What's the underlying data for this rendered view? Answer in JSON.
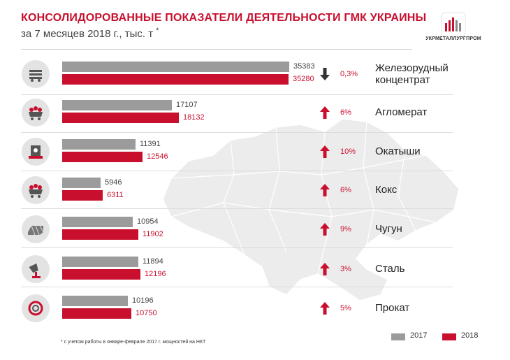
{
  "header": {
    "title": "КОНСОЛИДОРОВАННЫЕ ПОКАЗАТЕЛИ ДЕЯТЕЛЬНОСТИ ГМК УКРАИНЫ",
    "subtitle": "за 7 месяцев 2018 г., тыс. т",
    "subtitle_mark": "*",
    "logo_text": "УКРМЕТАЛЛУРГПРОМ"
  },
  "colors": {
    "brand_red": "#c8102e",
    "series_2017": "#9b9b9b",
    "series_2018": "#c8102e",
    "map": "#ececec"
  },
  "chart_data": {
    "type": "bar",
    "orientation": "horizontal",
    "categories": [
      "Железорудный концентрат",
      "Агломерат",
      "Окатыши",
      "Кокс",
      "Чугун",
      "Сталь",
      "Прокат"
    ],
    "series": [
      {
        "name": "2017",
        "values": [
          35383,
          17107,
          11391,
          5946,
          10954,
          11894,
          10196
        ]
      },
      {
        "name": "2018",
        "values": [
          35280,
          18132,
          12546,
          6311,
          11902,
          12196,
          10750
        ]
      }
    ],
    "change": [
      {
        "direction": "down",
        "text": "0,3%"
      },
      {
        "direction": "up",
        "text": "6%"
      },
      {
        "direction": "up",
        "text": "10%"
      },
      {
        "direction": "up",
        "text": "6%"
      },
      {
        "direction": "up",
        "text": "9%"
      },
      {
        "direction": "up",
        "text": "3%"
      },
      {
        "direction": "up",
        "text": "5%"
      }
    ],
    "icons": [
      "ore-cart-icon",
      "sinter-cart-icon",
      "pellet-furnace-icon",
      "coke-cart-icon",
      "pig-iron-icon",
      "steel-ladle-icon",
      "rolled-coil-icon"
    ],
    "legend": [
      "2017",
      "2018"
    ],
    "legend_placement": "bottom-right",
    "grid": false
  },
  "footnote": "* с учетом работы в январе-феврале 2017 г. мощностей на НКТ"
}
